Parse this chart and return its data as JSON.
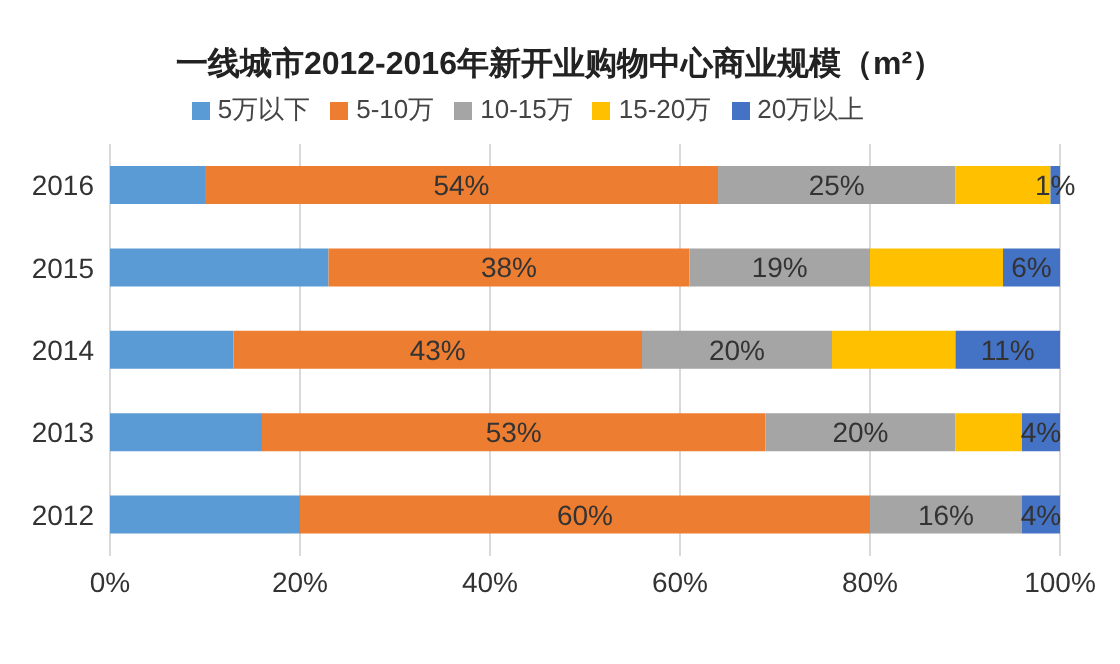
{
  "chart_data": {
    "type": "bar",
    "orientation": "horizontal",
    "stacked": true,
    "title": "一线城市2012-2016年新开业购物中心商业规模（m²）",
    "categories": [
      "2016",
      "2015",
      "2014",
      "2013",
      "2012"
    ],
    "series": [
      {
        "name": "5万以下",
        "color": "#5b9bd5",
        "values": [
          10,
          23,
          13,
          16,
          20
        ],
        "value_labels": [
          null,
          null,
          null,
          null,
          null
        ]
      },
      {
        "name": "5-10万",
        "color": "#ed7d31",
        "values": [
          54,
          38,
          43,
          53,
          60
        ],
        "value_labels": [
          "54%",
          "38%",
          "43%",
          "53%",
          "60%"
        ]
      },
      {
        "name": "10-15万",
        "color": "#a5a5a5",
        "values": [
          25,
          19,
          20,
          20,
          16
        ],
        "value_labels": [
          "25%",
          "19%",
          "20%",
          "20%",
          "16%"
        ]
      },
      {
        "name": "15-20万",
        "color": "#ffc000",
        "values": [
          10,
          14,
          13,
          7,
          0
        ],
        "value_labels": [
          null,
          null,
          null,
          null,
          null
        ]
      },
      {
        "name": "20万以上",
        "color": "#4472c4",
        "values": [
          1,
          6,
          11,
          4,
          4
        ],
        "value_labels": [
          "1%",
          "6%",
          "11%",
          "4%",
          "4%"
        ]
      }
    ],
    "xlim": [
      0,
      100
    ],
    "xticks": [
      {
        "value": 0,
        "label": "0%"
      },
      {
        "value": 20,
        "label": "20%"
      },
      {
        "value": 40,
        "label": "40%"
      },
      {
        "value": 60,
        "label": "60%"
      },
      {
        "value": 80,
        "label": "80%"
      },
      {
        "value": 100,
        "label": "100%"
      }
    ],
    "grid": "x",
    "legend": "top"
  }
}
